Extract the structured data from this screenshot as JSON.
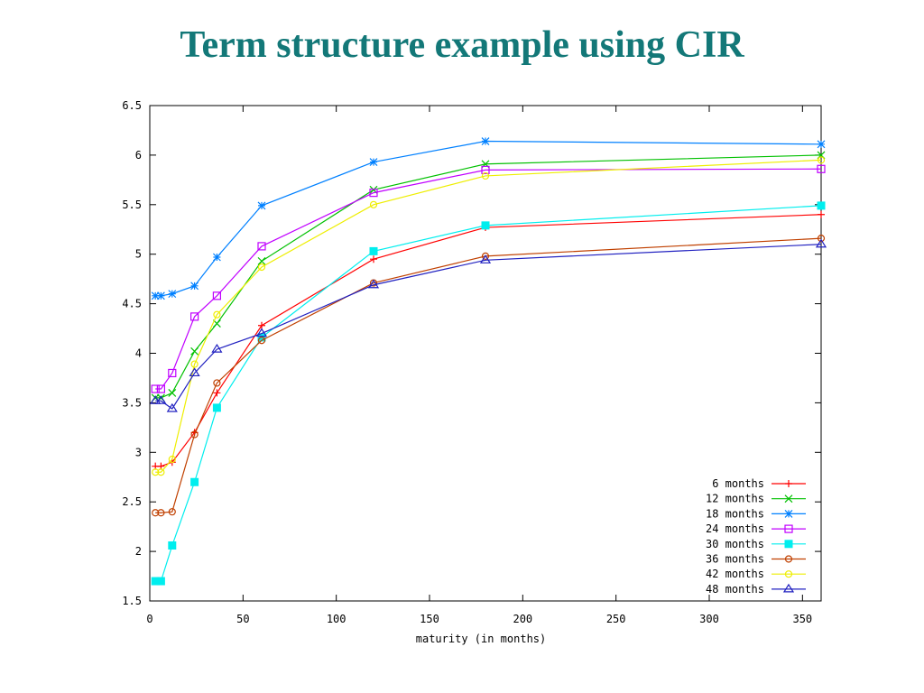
{
  "slide": {
    "title": "Term structure example using CIR"
  },
  "chart_data": {
    "type": "line",
    "title": "",
    "xlabel": "maturity (in months)",
    "ylabel": "",
    "xlim": [
      0,
      360
    ],
    "ylim": [
      1.5,
      6.5
    ],
    "xticks": [
      "0",
      "50",
      "100",
      "150",
      "200",
      "250",
      "300",
      "350"
    ],
    "yticks": [
      "1.5",
      "2",
      "2.5",
      "3",
      "3.5",
      "4",
      "4.5",
      "5",
      "5.5",
      "6",
      "6.5"
    ],
    "grid": false,
    "legend_position": "bottom-right",
    "x": [
      3,
      6,
      12,
      24,
      36,
      60,
      120,
      180,
      360
    ],
    "series": [
      {
        "name": "6 months",
        "color": "#ff0000",
        "marker": "plus",
        "values": [
          2.86,
          2.86,
          2.9,
          3.2,
          3.6,
          4.28,
          4.95,
          5.27,
          5.4
        ]
      },
      {
        "name": "12 months",
        "color": "#00c000",
        "marker": "cross",
        "values": [
          3.55,
          3.55,
          3.6,
          4.02,
          4.3,
          4.93,
          5.65,
          5.91,
          6.0
        ]
      },
      {
        "name": "18 months",
        "color": "#0080ff",
        "marker": "star",
        "values": [
          4.58,
          4.58,
          4.6,
          4.68,
          4.97,
          5.49,
          5.93,
          6.14,
          6.11
        ]
      },
      {
        "name": "24 months",
        "color": "#c000ff",
        "marker": "square",
        "values": [
          3.64,
          3.64,
          3.8,
          4.37,
          4.58,
          5.08,
          5.62,
          5.85,
          5.86
        ]
      },
      {
        "name": "30 months",
        "color": "#00eeee",
        "marker": "filled-square",
        "values": [
          1.7,
          1.7,
          2.06,
          2.7,
          3.45,
          4.16,
          5.03,
          5.29,
          5.49
        ]
      },
      {
        "name": "36 months",
        "color": "#c04000",
        "marker": "circle",
        "values": [
          2.39,
          2.39,
          2.4,
          3.18,
          3.7,
          4.13,
          4.71,
          4.98,
          5.16
        ]
      },
      {
        "name": "42 months",
        "color": "#eeee00",
        "marker": "circle",
        "values": [
          2.8,
          2.8,
          2.93,
          3.89,
          4.39,
          4.87,
          5.5,
          5.79,
          5.95
        ]
      },
      {
        "name": "48 months",
        "color": "#2020c0",
        "marker": "triangle",
        "values": [
          3.52,
          3.52,
          3.44,
          3.8,
          4.04,
          4.2,
          4.69,
          4.94,
          5.1
        ]
      }
    ]
  }
}
